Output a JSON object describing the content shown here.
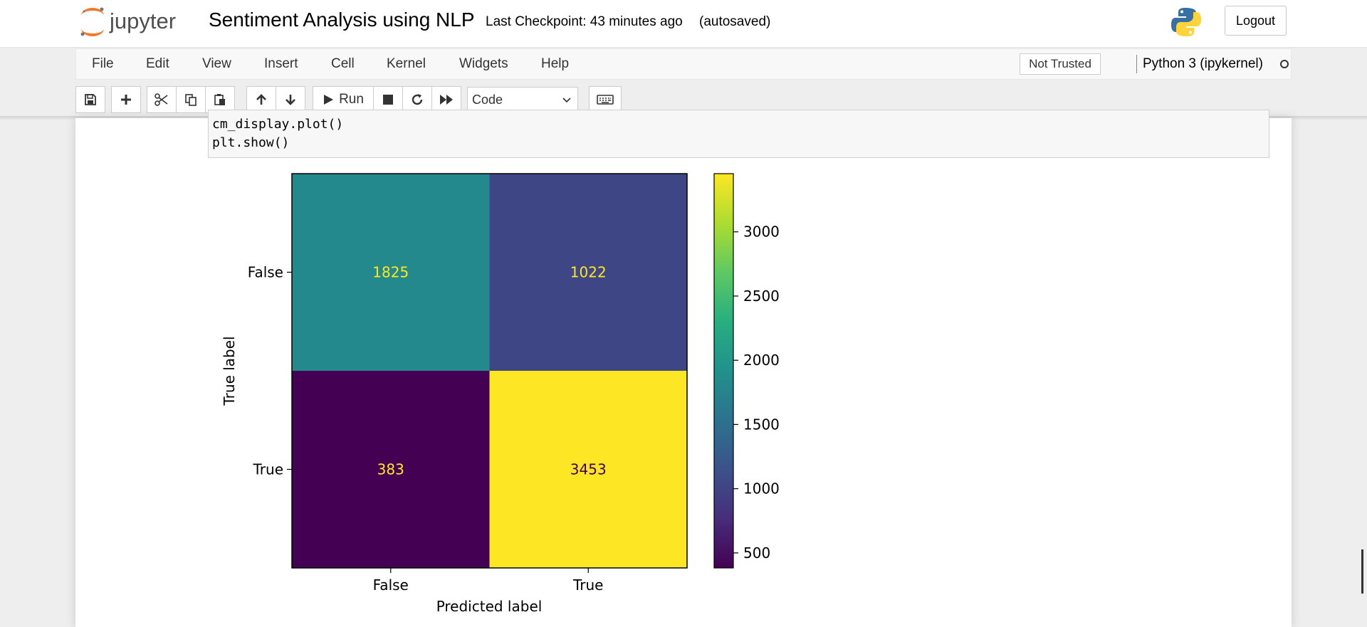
{
  "header": {
    "logo_text": "jupyter",
    "notebook_name": "Sentiment Analysis using NLP",
    "checkpoint": "Last Checkpoint: 43 minutes ago",
    "autosave_status": "(autosaved)",
    "logout_label": "Logout"
  },
  "menubar": {
    "items": [
      "File",
      "Edit",
      "View",
      "Insert",
      "Cell",
      "Kernel",
      "Widgets",
      "Help"
    ],
    "trust_label": "Not Trusted",
    "kernel_name": "Python 3 (ipykernel)"
  },
  "toolbar": {
    "run_label": "Run",
    "cell_type": "Code",
    "icons": [
      "save-icon",
      "plus-icon",
      "scissors-icon",
      "copy-icon",
      "paste-icon",
      "arrow-up-icon",
      "arrow-down-icon",
      "play-icon",
      "stop-icon",
      "refresh-icon",
      "fast-forward-icon",
      "keyboard-icon"
    ]
  },
  "code_cell": {
    "lines": [
      "cm_display.plot()",
      "plt.show()"
    ]
  },
  "chart_data": {
    "type": "heatmap",
    "x_categories": [
      "False",
      "True"
    ],
    "y_categories": [
      "False",
      "True"
    ],
    "values": [
      [
        1825,
        1022
      ],
      [
        383,
        3453
      ]
    ],
    "xlabel": "Predicted label",
    "ylabel": "True label",
    "colormap": "viridis",
    "colorbar": {
      "ticks": [
        500,
        1000,
        1500,
        2000,
        2500,
        3000
      ],
      "range": [
        383,
        3453
      ]
    }
  }
}
